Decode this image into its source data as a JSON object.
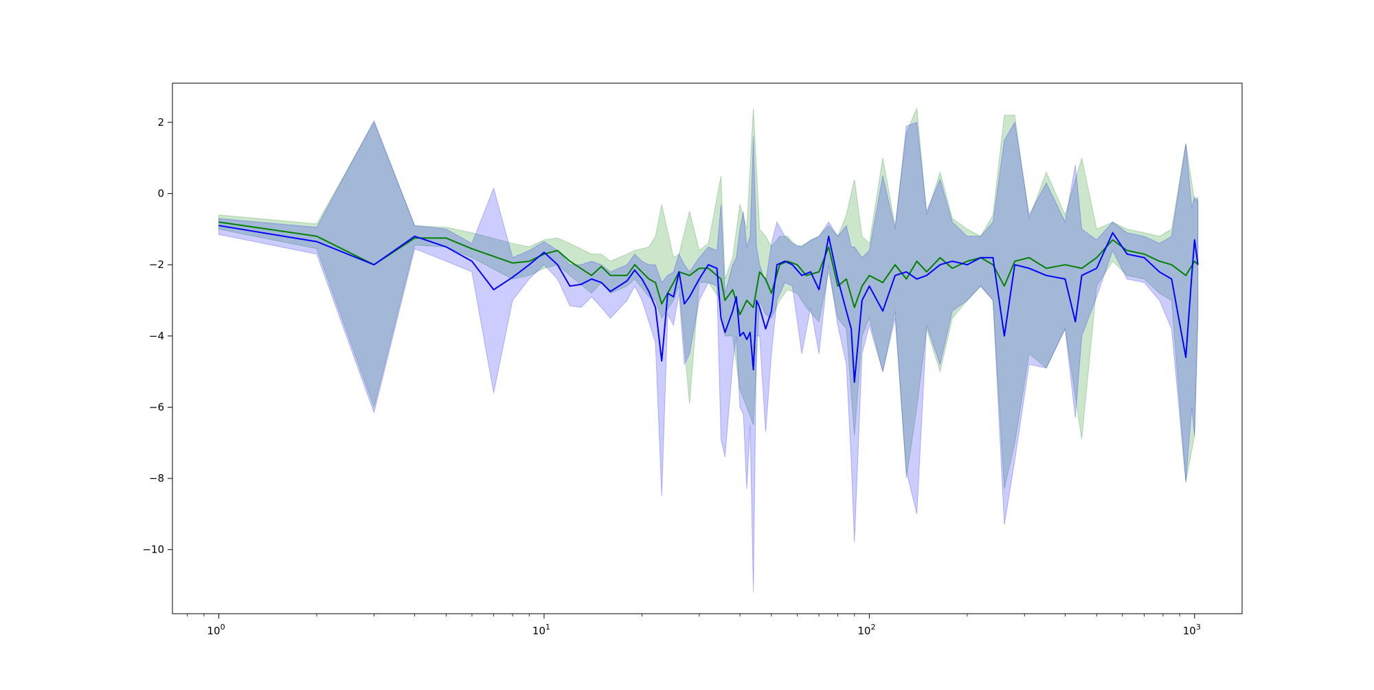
{
  "chart_data": {
    "type": "line",
    "title": "",
    "xlabel": "",
    "ylabel": "",
    "xscale": "log",
    "xlim": [
      0.72,
      1400
    ],
    "ylim": [
      -11.8,
      3.1
    ],
    "grid": false,
    "legend": "none",
    "xticks": [
      {
        "value": 1,
        "base": "10",
        "exp": "0"
      },
      {
        "value": 10,
        "base": "10",
        "exp": "1"
      },
      {
        "value": 100,
        "base": "10",
        "exp": "2"
      },
      {
        "value": 1000,
        "base": "10",
        "exp": "3"
      }
    ],
    "yticks": [
      {
        "value": 2,
        "label": "2"
      },
      {
        "value": 0,
        "label": "0"
      },
      {
        "value": -2,
        "label": "−2"
      },
      {
        "value": -4,
        "label": "−4"
      },
      {
        "value": -6,
        "label": "−6"
      },
      {
        "value": -8,
        "label": "−8"
      },
      {
        "value": -10,
        "label": "−10"
      }
    ],
    "series": [
      {
        "color": "#008000",
        "fill": "#008000",
        "fill_opacity": 0.2,
        "points": [
          [
            1,
            -0.8,
            -0.6,
            -1.0
          ],
          [
            2,
            -1.2,
            -0.85,
            -1.55
          ],
          [
            3,
            -2.0,
            2.0,
            -6.0
          ],
          [
            4,
            -1.25,
            -0.9,
            -1.45
          ],
          [
            5,
            -1.25,
            -0.95,
            -1.5
          ],
          [
            6,
            -1.55,
            -1.1,
            -1.8
          ],
          [
            8,
            -1.95,
            -1.4,
            -2.4
          ],
          [
            9,
            -1.9,
            -1.5,
            -2.3
          ],
          [
            10,
            -1.7,
            -1.3,
            -2.1
          ],
          [
            11,
            -1.6,
            -1.25,
            -2.0
          ],
          [
            12,
            -1.9,
            -1.4,
            -2.3
          ],
          [
            14,
            -2.3,
            -1.7,
            -2.8
          ],
          [
            15,
            -2.05,
            -1.7,
            -2.5
          ],
          [
            16,
            -2.3,
            -1.9,
            -2.8
          ],
          [
            18,
            -2.3,
            -1.7,
            -2.6
          ],
          [
            19,
            -2.0,
            -1.6,
            -2.4
          ],
          [
            21,
            -2.4,
            -1.5,
            -2.9
          ],
          [
            22,
            -2.5,
            -1.2,
            -3.0
          ],
          [
            23,
            -3.1,
            -0.3,
            -3.5
          ],
          [
            25,
            -2.5,
            -1.8,
            -3.0
          ],
          [
            26,
            -2.2,
            -1.7,
            -2.6
          ],
          [
            28,
            -2.3,
            -0.5,
            -5.9
          ],
          [
            30,
            -2.1,
            -1.6,
            -2.5
          ],
          [
            32,
            -2.1,
            -1.4,
            -2.5
          ],
          [
            35,
            -2.4,
            0.5,
            -3.0
          ],
          [
            36,
            -3.0,
            -2.4,
            -4.0
          ],
          [
            38,
            -2.7,
            -1.8,
            -4.0
          ],
          [
            40,
            -3.4,
            -0.3,
            -5.5
          ],
          [
            42,
            -3.0,
            -1.0,
            -6.0
          ],
          [
            44,
            -3.2,
            2.4,
            -6.5
          ],
          [
            46,
            -2.2,
            -1.0,
            -3.0
          ],
          [
            48,
            -2.4,
            -1.2,
            -3.4
          ],
          [
            50,
            -2.8,
            -1.5,
            -3.5
          ],
          [
            53,
            -2.0,
            -1.2,
            -3.0
          ],
          [
            56,
            -1.9,
            -1.2,
            -2.7
          ],
          [
            60,
            -2.0,
            -1.5,
            -2.8
          ],
          [
            64,
            -2.3,
            -1.4,
            -3.2
          ],
          [
            70,
            -2.2,
            -1.2,
            -3.6
          ],
          [
            75,
            -1.5,
            -0.9,
            -2.2
          ],
          [
            80,
            -2.6,
            -1.2,
            -3.5
          ],
          [
            85,
            -2.4,
            -0.6,
            -3.8
          ],
          [
            90,
            -3.2,
            0.4,
            -6.8
          ],
          [
            95,
            -2.6,
            -1.2,
            -4.0
          ],
          [
            100,
            -2.3,
            -1.4,
            -3.5
          ],
          [
            110,
            -2.5,
            1.0,
            -5.0
          ],
          [
            120,
            -2.0,
            -0.9,
            -3.3
          ],
          [
            130,
            -2.4,
            1.7,
            -8.0
          ],
          [
            140,
            -1.9,
            2.4,
            -6.0
          ],
          [
            150,
            -2.2,
            -0.6,
            -3.8
          ],
          [
            165,
            -1.8,
            0.6,
            -5.0
          ],
          [
            180,
            -2.1,
            -0.7,
            -3.5
          ],
          [
            200,
            -1.9,
            -1.0,
            -3.0
          ],
          [
            220,
            -1.8,
            -1.2,
            -2.6
          ],
          [
            240,
            -2.0,
            -0.6,
            -3.0
          ],
          [
            260,
            -2.6,
            2.2,
            -8.3
          ],
          [
            280,
            -1.9,
            2.2,
            -7.0
          ],
          [
            310,
            -1.8,
            -0.7,
            -4.5
          ],
          [
            350,
            -2.1,
            0.6,
            -4.9
          ],
          [
            400,
            -2.0,
            -0.6,
            -3.8
          ],
          [
            450,
            -2.1,
            1.0,
            -6.9
          ],
          [
            500,
            -1.8,
            -1.0,
            -2.6
          ],
          [
            560,
            -1.3,
            -0.8,
            -1.9
          ],
          [
            620,
            -1.6,
            -1.0,
            -2.3
          ],
          [
            700,
            -1.7,
            -1.1,
            -2.4
          ],
          [
            780,
            -1.9,
            -1.2,
            -2.8
          ],
          [
            850,
            -2.0,
            -1.0,
            -3.0
          ],
          [
            940,
            -2.3,
            1.4,
            -8.1
          ],
          [
            1000,
            -1.9,
            -0.2,
            -6.8
          ],
          [
            1024,
            -2.0,
            -0.1,
            -3.4
          ]
        ]
      },
      {
        "color": "#0000ff",
        "fill": "#0000ff",
        "fill_opacity": 0.2,
        "points": [
          [
            1,
            -0.9,
            -0.7,
            -1.15
          ],
          [
            2,
            -1.35,
            -0.95,
            -1.7
          ],
          [
            3,
            -2.0,
            2.05,
            -6.15
          ],
          [
            4,
            -1.2,
            -0.9,
            -1.55
          ],
          [
            5,
            -1.5,
            -1.0,
            -1.9
          ],
          [
            6,
            -1.9,
            -1.4,
            -2.2
          ],
          [
            7,
            -2.7,
            0.15,
            -5.6
          ],
          [
            8,
            -2.35,
            -1.8,
            -3.0
          ],
          [
            9,
            -2.0,
            -1.6,
            -2.4
          ],
          [
            10,
            -1.65,
            -1.35,
            -2.0
          ],
          [
            11,
            -2.0,
            -1.6,
            -2.4
          ],
          [
            12,
            -2.6,
            -2.0,
            -3.15
          ],
          [
            13,
            -2.55,
            -2.0,
            -3.2
          ],
          [
            14,
            -2.4,
            -1.9,
            -2.9
          ],
          [
            15,
            -2.5,
            -2.0,
            -3.2
          ],
          [
            16,
            -2.75,
            -2.2,
            -3.5
          ],
          [
            18,
            -2.45,
            -2.0,
            -3.0
          ],
          [
            19,
            -2.15,
            -1.7,
            -2.6
          ],
          [
            20,
            -2.4,
            -1.9,
            -3.0
          ],
          [
            21,
            -2.75,
            -2.0,
            -3.6
          ],
          [
            22,
            -3.2,
            -2.0,
            -4.2
          ],
          [
            23,
            -4.7,
            -2.5,
            -8.5
          ],
          [
            24,
            -2.8,
            -2.3,
            -3.4
          ],
          [
            25,
            -2.9,
            -2.2,
            -3.7
          ],
          [
            26,
            -2.2,
            -1.7,
            -2.8
          ],
          [
            27,
            -3.1,
            -2.0,
            -4.8
          ],
          [
            28,
            -2.9,
            -2.2,
            -4.5
          ],
          [
            30,
            -2.4,
            -1.8,
            -3.0
          ],
          [
            32,
            -2.0,
            -1.5,
            -2.5
          ],
          [
            34,
            -2.1,
            -1.6,
            -2.6
          ],
          [
            35,
            -3.5,
            -0.3,
            -6.9
          ],
          [
            36,
            -3.9,
            -2.8,
            -7.4
          ],
          [
            38,
            -3.3,
            -2.0,
            -4.8
          ],
          [
            39,
            -2.9,
            -1.8,
            -4.0
          ],
          [
            40,
            -4.0,
            -1.0,
            -6.0
          ],
          [
            41,
            -3.9,
            -0.5,
            -6.2
          ],
          [
            42,
            -4.1,
            -1.5,
            -8.3
          ],
          [
            43,
            -3.9,
            -1.2,
            -6.5
          ],
          [
            44,
            -4.95,
            1.6,
            -11.2
          ],
          [
            45,
            -3.0,
            -1.5,
            -4.0
          ],
          [
            46,
            -3.2,
            -2.0,
            -4.0
          ],
          [
            48,
            -3.8,
            -2.5,
            -6.7
          ],
          [
            50,
            -3.3,
            -1.4,
            -4.5
          ],
          [
            52,
            -2.0,
            -0.8,
            -3.0
          ],
          [
            55,
            -1.9,
            -1.2,
            -2.5
          ],
          [
            58,
            -2.0,
            -1.4,
            -2.6
          ],
          [
            62,
            -2.3,
            -1.5,
            -4.5
          ],
          [
            66,
            -2.2,
            -1.3,
            -3.2
          ],
          [
            70,
            -2.7,
            -1.2,
            -4.5
          ],
          [
            75,
            -1.2,
            -0.8,
            -2.0
          ],
          [
            80,
            -2.4,
            -1.2,
            -3.7
          ],
          [
            85,
            -3.3,
            -0.9,
            -4.8
          ],
          [
            88,
            -3.8,
            -1.5,
            -7.5
          ],
          [
            90,
            -5.3,
            -1.5,
            -9.8
          ],
          [
            95,
            -3.0,
            -1.8,
            -4.5
          ],
          [
            100,
            -2.6,
            -1.6,
            -3.7
          ],
          [
            110,
            -3.3,
            0.5,
            -5.0
          ],
          [
            120,
            -2.3,
            -1.0,
            -3.5
          ],
          [
            130,
            -2.2,
            1.9,
            -7.8
          ],
          [
            140,
            -2.4,
            2.0,
            -9.0
          ],
          [
            150,
            -2.3,
            -0.5,
            -3.7
          ],
          [
            165,
            -2.0,
            0.4,
            -4.8
          ],
          [
            180,
            -1.9,
            -0.8,
            -3.3
          ],
          [
            200,
            -2.0,
            -1.2,
            -3.0
          ],
          [
            220,
            -1.8,
            -1.2,
            -2.6
          ],
          [
            240,
            -1.8,
            -0.8,
            -3.0
          ],
          [
            260,
            -4.0,
            1.5,
            -9.3
          ],
          [
            280,
            -2.0,
            2.0,
            -7.5
          ],
          [
            310,
            -2.1,
            -0.6,
            -4.8
          ],
          [
            350,
            -2.3,
            0.3,
            -4.9
          ],
          [
            400,
            -2.4,
            -0.8,
            -3.8
          ],
          [
            430,
            -3.6,
            0.8,
            -6.3
          ],
          [
            450,
            -2.3,
            -1.0,
            -4.0
          ],
          [
            500,
            -2.1,
            -1.3,
            -2.9
          ],
          [
            560,
            -1.1,
            -0.8,
            -1.6
          ],
          [
            620,
            -1.7,
            -1.1,
            -2.4
          ],
          [
            700,
            -1.8,
            -1.2,
            -2.5
          ],
          [
            780,
            -2.2,
            -1.4,
            -3.0
          ],
          [
            850,
            -2.4,
            -1.2,
            -3.8
          ],
          [
            940,
            -4.6,
            1.4,
            -8.1
          ],
          [
            980,
            -2.3,
            -0.4,
            -6.0
          ],
          [
            1000,
            -1.3,
            -0.1,
            -6.8
          ],
          [
            1024,
            -2.0,
            -0.2,
            -3.5
          ]
        ]
      }
    ]
  }
}
